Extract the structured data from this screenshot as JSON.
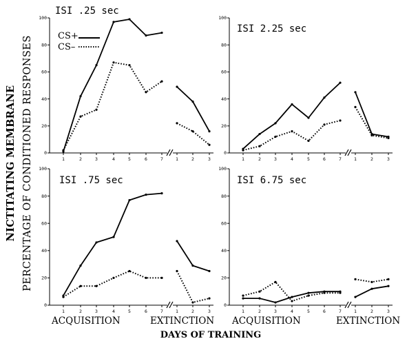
{
  "figure": {
    "ylabel_line1": "NICTITATING MEMBRANE",
    "ylabel_line2": "PERCENTAGE OF CONDITIONED RESPONSES",
    "xlabel": "DAYS OF TRAINING",
    "phase_acquisition": "ACQUISITION",
    "phase_extinction": "EXTINCTION"
  },
  "legend": {
    "cs_plus": "CS+",
    "cs_minus": "CS–"
  },
  "chart_data": [
    {
      "type": "line",
      "title": "ISI .25 sec",
      "ylim": [
        0,
        100
      ],
      "yticks": [
        0,
        20,
        40,
        60,
        80,
        100
      ],
      "acquisition_days": [
        1,
        2,
        3,
        4,
        5,
        6,
        7
      ],
      "extinction_days": [
        1,
        2,
        3
      ],
      "series": [
        {
          "name": "CS+",
          "style": "solid",
          "acquisition": [
            1,
            42,
            65,
            97,
            99,
            87,
            89
          ],
          "extinction": [
            49,
            38,
            16
          ]
        },
        {
          "name": "CS–",
          "style": "dotted",
          "acquisition": [
            2,
            27,
            32,
            67,
            65,
            45,
            53
          ],
          "extinction": [
            22,
            16,
            6
          ]
        }
      ]
    },
    {
      "type": "line",
      "title": "ISI 2.25 sec",
      "ylim": [
        0,
        100
      ],
      "yticks": [
        0,
        20,
        40,
        60,
        80,
        100
      ],
      "acquisition_days": [
        1,
        2,
        3,
        4,
        5,
        6,
        7
      ],
      "extinction_days": [
        1,
        2,
        3
      ],
      "series": [
        {
          "name": "CS+",
          "style": "solid",
          "acquisition": [
            3,
            14,
            22,
            36,
            26,
            41,
            52
          ],
          "extinction": [
            45,
            14,
            12
          ]
        },
        {
          "name": "CS–",
          "style": "dotted",
          "acquisition": [
            2,
            5,
            12,
            16,
            9,
            21,
            24
          ],
          "extinction": [
            34,
            13,
            11
          ]
        }
      ]
    },
    {
      "type": "line",
      "title": "ISI .75 sec",
      "ylim": [
        0,
        100
      ],
      "yticks": [
        0,
        20,
        40,
        60,
        80,
        100
      ],
      "acquisition_days": [
        1,
        2,
        3,
        4,
        5,
        6,
        7
      ],
      "extinction_days": [
        1,
        2,
        3
      ],
      "series": [
        {
          "name": "CS+",
          "style": "solid",
          "acquisition": [
            7,
            29,
            46,
            50,
            77,
            81,
            82
          ],
          "extinction": [
            47,
            29,
            25
          ]
        },
        {
          "name": "CS–",
          "style": "dotted",
          "acquisition": [
            6,
            14,
            14,
            20,
            25,
            20,
            20
          ],
          "extinction": [
            25,
            2,
            5
          ]
        }
      ]
    },
    {
      "type": "line",
      "title": "ISI 6.75 sec",
      "ylim": [
        0,
        100
      ],
      "yticks": [
        0,
        20,
        40,
        60,
        80,
        100
      ],
      "acquisition_days": [
        1,
        2,
        3,
        4,
        5,
        6,
        7
      ],
      "extinction_days": [
        1,
        2,
        3
      ],
      "series": [
        {
          "name": "CS+",
          "style": "solid",
          "acquisition": [
            5,
            5,
            2,
            6,
            9,
            10,
            10
          ],
          "extinction": [
            6,
            12,
            14
          ]
        },
        {
          "name": "CS–",
          "style": "dotted",
          "acquisition": [
            7,
            10,
            17,
            3,
            7,
            9,
            9
          ],
          "extinction": [
            19,
            17,
            19
          ]
        }
      ]
    }
  ]
}
